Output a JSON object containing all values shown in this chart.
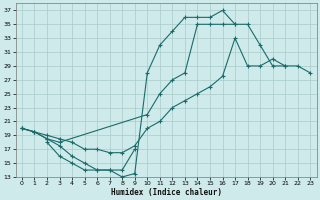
{
  "xlabel": "Humidex (Indice chaleur)",
  "background_color": "#ceeaea",
  "grid_color": "#aacaca",
  "line_color": "#1a6b6b",
  "ylim": [
    13,
    38
  ],
  "yticks": [
    13,
    15,
    17,
    19,
    21,
    23,
    25,
    27,
    29,
    31,
    33,
    35,
    37
  ],
  "xlim": [
    -0.5,
    23.5
  ],
  "xticks": [
    0,
    1,
    2,
    3,
    4,
    5,
    6,
    7,
    8,
    9,
    10,
    11,
    12,
    13,
    14,
    15,
    16,
    17,
    18,
    19,
    20,
    21,
    22,
    23
  ],
  "line1_x": [
    0,
    1,
    2,
    3,
    4,
    5,
    6,
    7,
    8,
    9,
    10,
    11,
    12,
    13,
    14,
    15,
    16,
    17,
    18,
    19,
    20,
    21
  ],
  "line1_y": [
    20,
    19.5,
    18.5,
    17.5,
    16,
    15,
    14,
    14,
    13,
    13.5,
    28,
    32,
    34,
    36,
    36,
    36,
    37,
    35,
    35,
    32,
    29,
    29
  ],
  "line2_x": [
    0,
    1,
    2,
    3,
    10,
    11,
    12,
    13,
    14,
    15,
    16,
    17
  ],
  "line2_y": [
    20,
    19.5,
    18.5,
    18,
    22,
    25,
    27,
    28,
    35,
    35,
    35,
    35
  ],
  "line3_x": [
    2,
    3,
    4,
    5,
    6,
    7,
    8,
    9
  ],
  "line3_y": [
    18,
    16,
    15,
    14,
    14,
    14,
    14,
    17
  ],
  "line4_x": [
    0,
    1,
    2,
    3,
    4,
    5,
    6,
    7,
    8,
    9,
    10,
    11,
    12,
    13,
    14,
    15,
    16,
    17,
    18,
    19,
    20,
    21,
    22,
    23
  ],
  "line4_y": [
    20,
    19.5,
    19,
    18.5,
    18,
    17,
    17,
    16.5,
    16.5,
    17.5,
    20,
    21,
    23,
    24,
    25,
    26,
    27.5,
    33,
    29,
    29,
    30,
    29,
    29,
    28
  ]
}
